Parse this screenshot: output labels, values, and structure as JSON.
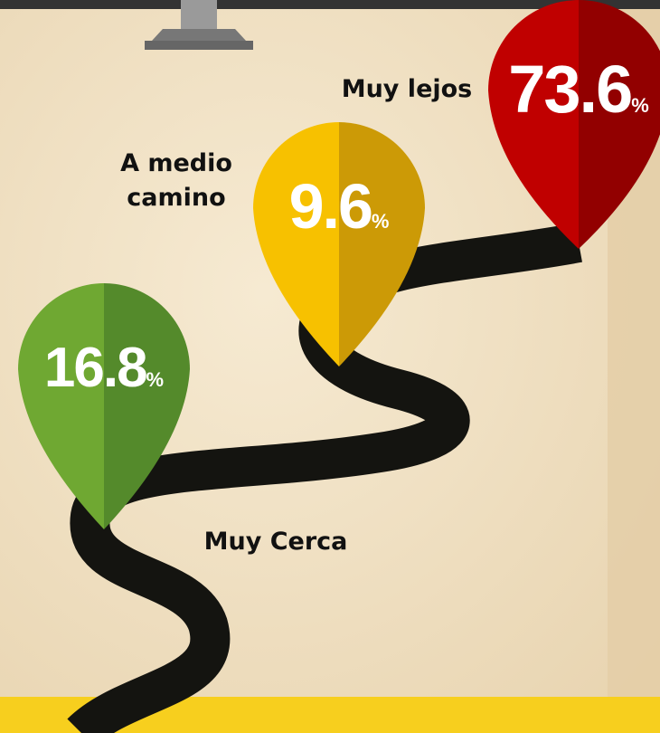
{
  "unit": "%",
  "items": [
    {
      "label": "Muy Cerca",
      "value": 16.8
    },
    {
      "label": "A medio camino",
      "value": 9.6
    },
    {
      "label": "Muy lejos",
      "value": 73.6
    }
  ]
}
